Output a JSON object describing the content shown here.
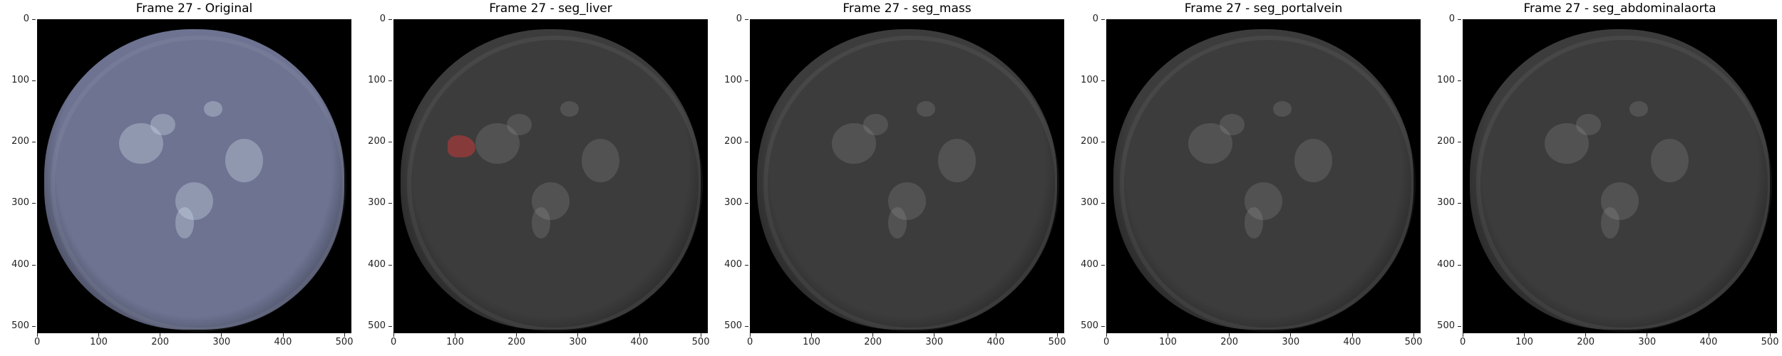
{
  "panels": [
    {
      "title": "Frame 27 - Original",
      "variant": "original",
      "has_overlay": false
    },
    {
      "title": "Frame 27 - seg_liver",
      "variant": "dim",
      "has_overlay": true,
      "overlay_color": "#8b3a3a"
    },
    {
      "title": "Frame 27 - seg_mass",
      "variant": "dim",
      "has_overlay": false
    },
    {
      "title": "Frame 27 - seg_portalvein",
      "variant": "dim",
      "has_overlay": false
    },
    {
      "title": "Frame 27 - seg_abdominalaorta",
      "variant": "dim",
      "has_overlay": false
    }
  ],
  "axis": {
    "x_ticks": [
      "0",
      "100",
      "200",
      "300",
      "400",
      "500"
    ],
    "y_ticks": [
      "0",
      "100",
      "200",
      "300",
      "400",
      "500"
    ],
    "range": [
      0,
      512
    ]
  },
  "colors": {
    "original_body": "#6d7391",
    "dim_body": "#3c3c3c",
    "overlay": "#8b3a3a"
  }
}
